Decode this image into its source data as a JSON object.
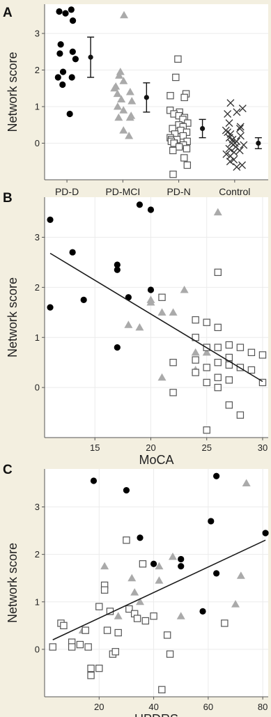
{
  "panels": {
    "A": {
      "letter": "A"
    },
    "B": {
      "letter": "B"
    },
    "C": {
      "letter": "C"
    }
  },
  "colors": {
    "panel_background": "#ffffff",
    "gridline": "#ebebeb",
    "axis": "#555555",
    "pd_d_marker": "#000000",
    "pd_mci_marker": "#aaaaaa",
    "pd_n_marker": "#555555",
    "control_marker": "#333333",
    "fit_line": "#1a1a1a"
  },
  "chart_data": [
    {
      "type": "scatter",
      "panel": "A",
      "title": "",
      "xlabel": "",
      "ylabel": "Network score",
      "categories": [
        "PD-D",
        "PD-MCI",
        "PD-N",
        "Control"
      ],
      "ylim": [
        -1,
        3.8
      ],
      "yticks": [
        0,
        1,
        2,
        3
      ],
      "grid": true,
      "series": [
        {
          "category": "PD-D",
          "marker": "filled-circle",
          "values": [
            3.65,
            3.6,
            3.55,
            3.35,
            2.7,
            2.5,
            2.45,
            2.3,
            1.95,
            1.8,
            1.8,
            1.6,
            0.8
          ]
        },
        {
          "category": "PD-MCI",
          "marker": "filled-triangle",
          "values": [
            3.5,
            1.95,
            1.85,
            1.7,
            1.55,
            1.5,
            1.4,
            1.35,
            1.2,
            1.15,
            1.0,
            0.9,
            0.75,
            0.7,
            0.7,
            0.35,
            0.2
          ]
        },
        {
          "category": "PD-N",
          "marker": "open-square",
          "values": [
            2.3,
            1.8,
            1.35,
            1.3,
            1.25,
            0.9,
            0.85,
            0.8,
            0.75,
            0.7,
            0.65,
            0.55,
            0.5,
            0.45,
            0.4,
            0.35,
            0.3,
            0.25,
            0.2,
            0.15,
            0.1,
            0.1,
            0.05,
            0.05,
            0.0,
            0.0,
            -0.05,
            -0.1,
            -0.15,
            -0.2,
            -0.4,
            -0.6,
            -0.85
          ]
        },
        {
          "category": "Control",
          "marker": "x",
          "values": [
            1.1,
            0.95,
            0.85,
            0.8,
            0.55,
            0.45,
            0.4,
            0.35,
            0.3,
            0.25,
            0.2,
            0.15,
            0.1,
            0.05,
            0.0,
            0.0,
            -0.05,
            -0.1,
            -0.15,
            -0.2,
            -0.25,
            -0.3,
            -0.35,
            -0.45,
            -0.5,
            -0.6,
            -0.65
          ]
        }
      ],
      "summary": [
        {
          "category": "PD-D",
          "mean": 2.35,
          "lower": 1.8,
          "upper": 2.9
        },
        {
          "category": "PD-MCI",
          "mean": 1.25,
          "lower": 0.85,
          "upper": 1.65
        },
        {
          "category": "PD-N",
          "mean": 0.4,
          "lower": 0.15,
          "upper": 0.65
        },
        {
          "category": "Control",
          "mean": 0.0,
          "lower": -0.15,
          "upper": 0.15
        }
      ]
    },
    {
      "type": "scatter",
      "panel": "B",
      "title": "",
      "xlabel": "MoCA",
      "ylabel": "Network score",
      "xlim": [
        10.5,
        30.5
      ],
      "ylim": [
        -1,
        3.8
      ],
      "xticks": [
        15,
        20,
        25,
        30
      ],
      "yticks": [
        0,
        1,
        2,
        3
      ],
      "grid": true,
      "series": [
        {
          "group": "PD-D",
          "marker": "filled-circle",
          "points": [
            [
              11,
              3.35
            ],
            [
              11,
              1.6
            ],
            [
              13,
              2.7
            ],
            [
              14,
              1.75
            ],
            [
              17,
              2.45
            ],
            [
              17,
              2.35
            ],
            [
              17,
              0.8
            ],
            [
              18,
              1.8
            ],
            [
              19,
              3.65
            ],
            [
              20,
              3.55
            ],
            [
              20,
              1.95
            ]
          ]
        },
        {
          "group": "PD-MCI",
          "marker": "filled-triangle",
          "points": [
            [
              18,
              1.25
            ],
            [
              19,
              1.2
            ],
            [
              20,
              1.75
            ],
            [
              20,
              1.7
            ],
            [
              21,
              1.5
            ],
            [
              21,
              0.2
            ],
            [
              22,
              1.5
            ],
            [
              23,
              1.95
            ],
            [
              24,
              0.7
            ],
            [
              24,
              0.35
            ],
            [
              25,
              0.7
            ],
            [
              26,
              3.5
            ]
          ]
        },
        {
          "group": "PD-N",
          "marker": "open-square",
          "points": [
            [
              21,
              1.8
            ],
            [
              22,
              0.5
            ],
            [
              22,
              -0.1
            ],
            [
              24,
              1.35
            ],
            [
              24,
              1.0
            ],
            [
              24,
              0.55
            ],
            [
              24,
              0.3
            ],
            [
              25,
              1.3
            ],
            [
              25,
              0.8
            ],
            [
              25,
              0.4
            ],
            [
              25,
              0.1
            ],
            [
              25,
              -0.85
            ],
            [
              26,
              2.3
            ],
            [
              26,
              1.2
            ],
            [
              26,
              0.8
            ],
            [
              26,
              0.5
            ],
            [
              26,
              0.2
            ],
            [
              26,
              0.0
            ],
            [
              27,
              0.85
            ],
            [
              27,
              0.6
            ],
            [
              27,
              0.45
            ],
            [
              27,
              0.15
            ],
            [
              27,
              -0.35
            ],
            [
              28,
              0.8
            ],
            [
              28,
              0.4
            ],
            [
              28,
              -0.55
            ],
            [
              29,
              0.7
            ],
            [
              29,
              0.35
            ],
            [
              30,
              0.65
            ],
            [
              30,
              0.1
            ]
          ]
        }
      ],
      "fit_line": {
        "x": [
          11,
          30
        ],
        "y": [
          2.68,
          0.12
        ]
      }
    },
    {
      "type": "scatter",
      "panel": "C",
      "title": "",
      "xlabel": "UPDRS",
      "ylabel": "Network score",
      "xlim": [
        0,
        82
      ],
      "ylim": [
        -1,
        3.8
      ],
      "xticks": [
        20,
        40,
        60,
        80
      ],
      "yticks": [
        0,
        1,
        2,
        3
      ],
      "grid": true,
      "series": [
        {
          "group": "PD-D",
          "marker": "filled-circle",
          "points": [
            [
              18,
              3.55
            ],
            [
              30,
              3.35
            ],
            [
              35,
              2.35
            ],
            [
              40,
              1.8
            ],
            [
              50,
              1.9
            ],
            [
              50,
              1.75
            ],
            [
              58,
              0.8
            ],
            [
              61,
              2.7
            ],
            [
              63,
              3.65
            ],
            [
              63,
              1.6
            ],
            [
              81,
              2.45
            ]
          ]
        },
        {
          "group": "PD-MCI",
          "marker": "filled-triangle",
          "points": [
            [
              14,
              0.4
            ],
            [
              22,
              1.75
            ],
            [
              27,
              0.7
            ],
            [
              32,
              1.5
            ],
            [
              33,
              1.2
            ],
            [
              35,
              1.0
            ],
            [
              42,
              1.75
            ],
            [
              42,
              1.45
            ],
            [
              47,
              1.95
            ],
            [
              50,
              0.7
            ],
            [
              70,
              0.95
            ],
            [
              72,
              1.55
            ],
            [
              74,
              3.5
            ]
          ]
        },
        {
          "group": "PD-N",
          "marker": "open-square",
          "points": [
            [
              3,
              0.05
            ],
            [
              6,
              0.55
            ],
            [
              7,
              0.5
            ],
            [
              10,
              0.15
            ],
            [
              10,
              0.05
            ],
            [
              13,
              0.1
            ],
            [
              15,
              0.4
            ],
            [
              16,
              0.05
            ],
            [
              17,
              -0.4
            ],
            [
              17,
              -0.55
            ],
            [
              20,
              0.9
            ],
            [
              20,
              -0.4
            ],
            [
              22,
              1.35
            ],
            [
              22,
              1.25
            ],
            [
              23,
              0.4
            ],
            [
              24,
              0.8
            ],
            [
              25,
              -0.1
            ],
            [
              26,
              -0.05
            ],
            [
              27,
              0.35
            ],
            [
              30,
              2.3
            ],
            [
              31,
              0.85
            ],
            [
              33,
              0.75
            ],
            [
              34,
              0.65
            ],
            [
              36,
              1.8
            ],
            [
              37,
              0.6
            ],
            [
              40,
              0.7
            ],
            [
              43,
              -0.85
            ],
            [
              45,
              0.3
            ],
            [
              46,
              -0.1
            ],
            [
              66,
              0.55
            ]
          ]
        }
      ],
      "fit_line": {
        "x": [
          3,
          81
        ],
        "y": [
          0.2,
          2.3
        ]
      }
    }
  ]
}
